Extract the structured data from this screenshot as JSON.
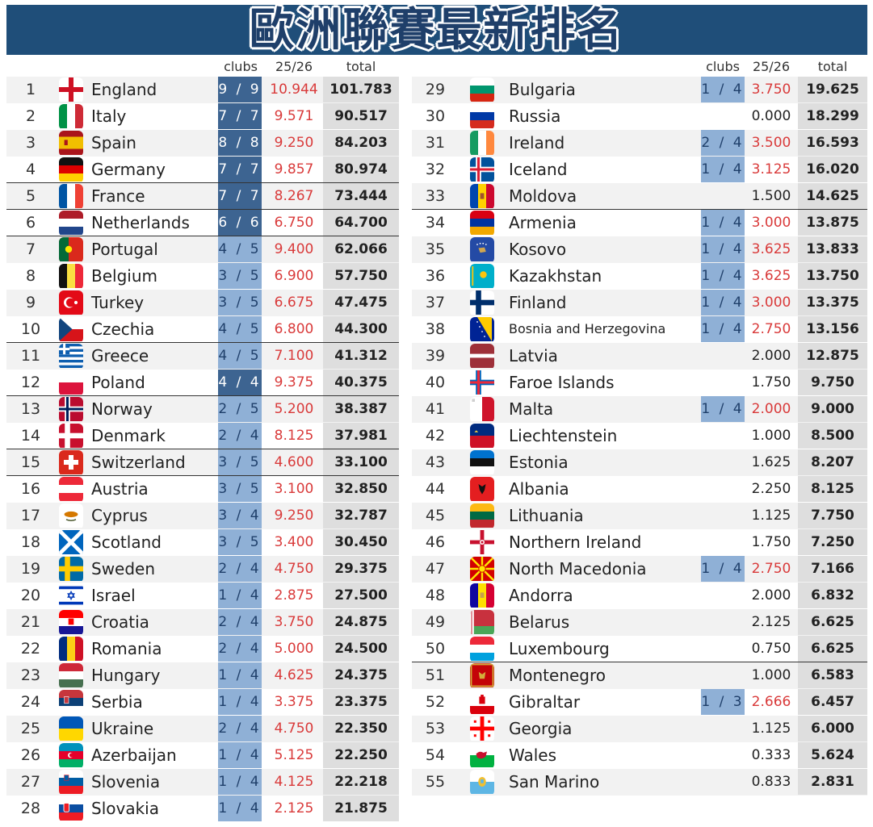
{
  "title": "歐洲聯賽最新排名",
  "headers": {
    "clubs": "clubs",
    "season": "25/26",
    "total": "total"
  },
  "colors": {
    "banner": "#1f4e79",
    "clubs_full": "#3d6491",
    "clubs_partial": "#8fb0d6",
    "season_red": "#d93a3a",
    "row_bg": "#f2f2f2",
    "total_bg": "#dedede"
  },
  "chart_data": {
    "type": "table",
    "columns": [
      "rank",
      "country",
      "clubs",
      "25/26",
      "total"
    ],
    "rows": [
      {
        "rank": "1",
        "country": "England",
        "flag": "england-flag",
        "clubs": "9 / 9",
        "season": "10.944",
        "total": "101.783"
      },
      {
        "rank": "2",
        "country": "Italy",
        "flag": "italy-flag",
        "clubs": "7 / 7",
        "season": "9.571",
        "total": "90.517"
      },
      {
        "rank": "3",
        "country": "Spain",
        "flag": "spain-flag",
        "clubs": "8 / 8",
        "season": "9.250",
        "total": "84.203"
      },
      {
        "rank": "4",
        "country": "Germany",
        "flag": "germany-flag",
        "clubs": "7 / 7",
        "season": "9.857",
        "total": "80.974"
      },
      {
        "rank": "5",
        "country": "France",
        "flag": "france-flag",
        "clubs": "7 / 7",
        "season": "8.267",
        "total": "73.444"
      },
      {
        "rank": "6",
        "country": "Netherlands",
        "flag": "netherlands-flag",
        "clubs": "6 / 6",
        "season": "6.750",
        "total": "64.700"
      },
      {
        "rank": "7",
        "country": "Portugal",
        "flag": "portugal-flag",
        "clubs": "4 / 5",
        "season": "9.400",
        "total": "62.066"
      },
      {
        "rank": "8",
        "country": "Belgium",
        "flag": "belgium-flag",
        "clubs": "3 / 5",
        "season": "6.900",
        "total": "57.750"
      },
      {
        "rank": "9",
        "country": "Turkey",
        "flag": "turkey-flag",
        "clubs": "3 / 5",
        "season": "6.675",
        "total": "47.475"
      },
      {
        "rank": "10",
        "country": "Czechia",
        "flag": "czechia-flag",
        "clubs": "4 / 5",
        "season": "6.800",
        "total": "44.300"
      },
      {
        "rank": "11",
        "country": "Greece",
        "flag": "greece-flag",
        "clubs": "4 / 5",
        "season": "7.100",
        "total": "41.312"
      },
      {
        "rank": "12",
        "country": "Poland",
        "flag": "poland-flag",
        "clubs": "4 / 4",
        "season": "9.375",
        "total": "40.375"
      },
      {
        "rank": "13",
        "country": "Norway",
        "flag": "norway-flag",
        "clubs": "2 / 5",
        "season": "5.200",
        "total": "38.387"
      },
      {
        "rank": "14",
        "country": "Denmark",
        "flag": "denmark-flag",
        "clubs": "2 / 4",
        "season": "8.125",
        "total": "37.981"
      },
      {
        "rank": "15",
        "country": "Switzerland",
        "flag": "switzerland-flag",
        "clubs": "3 / 5",
        "season": "4.600",
        "total": "33.100"
      },
      {
        "rank": "16",
        "country": "Austria",
        "flag": "austria-flag",
        "clubs": "3 / 5",
        "season": "3.100",
        "total": "32.850"
      },
      {
        "rank": "17",
        "country": "Cyprus",
        "flag": "cyprus-flag",
        "clubs": "3 / 4",
        "season": "9.250",
        "total": "32.787"
      },
      {
        "rank": "18",
        "country": "Scotland",
        "flag": "scotland-flag",
        "clubs": "3 / 5",
        "season": "3.400",
        "total": "30.450"
      },
      {
        "rank": "19",
        "country": "Sweden",
        "flag": "sweden-flag",
        "clubs": "2 / 4",
        "season": "4.750",
        "total": "29.375"
      },
      {
        "rank": "20",
        "country": "Israel",
        "flag": "israel-flag",
        "clubs": "1 / 4",
        "season": "2.875",
        "total": "27.500"
      },
      {
        "rank": "21",
        "country": "Croatia",
        "flag": "croatia-flag",
        "clubs": "2 / 4",
        "season": "3.750",
        "total": "24.875"
      },
      {
        "rank": "22",
        "country": "Romania",
        "flag": "romania-flag",
        "clubs": "2 / 4",
        "season": "5.000",
        "total": "24.500"
      },
      {
        "rank": "23",
        "country": "Hungary",
        "flag": "hungary-flag",
        "clubs": "1 / 4",
        "season": "4.625",
        "total": "24.375"
      },
      {
        "rank": "24",
        "country": "Serbia",
        "flag": "serbia-flag",
        "clubs": "1 / 4",
        "season": "3.375",
        "total": "23.375"
      },
      {
        "rank": "25",
        "country": "Ukraine",
        "flag": "ukraine-flag",
        "clubs": "2 / 4",
        "season": "4.750",
        "total": "22.350"
      },
      {
        "rank": "26",
        "country": "Azerbaijan",
        "flag": "azerbaijan-flag",
        "clubs": "1 / 4",
        "season": "5.125",
        "total": "22.250"
      },
      {
        "rank": "27",
        "country": "Slovenia",
        "flag": "slovenia-flag",
        "clubs": "1 / 4",
        "season": "4.125",
        "total": "22.218"
      },
      {
        "rank": "28",
        "country": "Slovakia",
        "flag": "slovakia-flag",
        "clubs": "1 / 4",
        "season": "2.125",
        "total": "21.875"
      },
      {
        "rank": "29",
        "country": "Bulgaria",
        "flag": "bulgaria-flag",
        "clubs": "1 / 4",
        "season": "3.750",
        "total": "19.625"
      },
      {
        "rank": "30",
        "country": "Russia",
        "flag": "russia-flag",
        "clubs": "",
        "season": "0.000",
        "total": "18.299"
      },
      {
        "rank": "31",
        "country": "Ireland",
        "flag": "ireland-flag",
        "clubs": "2 / 4",
        "season": "3.500",
        "total": "16.593"
      },
      {
        "rank": "32",
        "country": "Iceland",
        "flag": "iceland-flag",
        "clubs": "1 / 4",
        "season": "3.125",
        "total": "16.020"
      },
      {
        "rank": "33",
        "country": "Moldova",
        "flag": "moldova-flag",
        "clubs": "",
        "season": "1.500",
        "total": "14.625"
      },
      {
        "rank": "34",
        "country": "Armenia",
        "flag": "armenia-flag",
        "clubs": "1 / 4",
        "season": "3.000",
        "total": "13.875"
      },
      {
        "rank": "35",
        "country": "Kosovo",
        "flag": "kosovo-flag",
        "clubs": "1 / 4",
        "season": "3.625",
        "total": "13.833"
      },
      {
        "rank": "36",
        "country": "Kazakhstan",
        "flag": "kazakhstan-flag",
        "clubs": "1 / 4",
        "season": "3.625",
        "total": "13.750"
      },
      {
        "rank": "37",
        "country": "Finland",
        "flag": "finland-flag",
        "clubs": "1 / 4",
        "season": "3.000",
        "total": "13.375"
      },
      {
        "rank": "38",
        "country": "Bosnia and Herzegovina",
        "flag": "bosnia-flag",
        "clubs": "1 / 4",
        "season": "2.750",
        "total": "13.156"
      },
      {
        "rank": "39",
        "country": "Latvia",
        "flag": "latvia-flag",
        "clubs": "",
        "season": "2.000",
        "total": "12.875"
      },
      {
        "rank": "40",
        "country": "Faroe Islands",
        "flag": "faroe-flag",
        "clubs": "",
        "season": "1.750",
        "total": "9.750"
      },
      {
        "rank": "41",
        "country": "Malta",
        "flag": "malta-flag",
        "clubs": "1 / 4",
        "season": "2.000",
        "total": "9.000"
      },
      {
        "rank": "42",
        "country": "Liechtenstein",
        "flag": "liechtenstein-flag",
        "clubs": "",
        "season": "1.000",
        "total": "8.500"
      },
      {
        "rank": "43",
        "country": "Estonia",
        "flag": "estonia-flag",
        "clubs": "",
        "season": "1.625",
        "total": "8.207"
      },
      {
        "rank": "44",
        "country": "Albania",
        "flag": "albania-flag",
        "clubs": "",
        "season": "2.250",
        "total": "8.125"
      },
      {
        "rank": "45",
        "country": "Lithuania",
        "flag": "lithuania-flag",
        "clubs": "",
        "season": "1.125",
        "total": "7.750"
      },
      {
        "rank": "46",
        "country": "Northern Ireland",
        "flag": "northern-ireland-flag",
        "clubs": "",
        "season": "1.750",
        "total": "7.250"
      },
      {
        "rank": "47",
        "country": "North Macedonia",
        "flag": "north-macedonia-flag",
        "clubs": "1 / 4",
        "season": "2.750",
        "total": "7.166"
      },
      {
        "rank": "48",
        "country": "Andorra",
        "flag": "andorra-flag",
        "clubs": "",
        "season": "2.000",
        "total": "6.832"
      },
      {
        "rank": "49",
        "country": "Belarus",
        "flag": "belarus-flag",
        "clubs": "",
        "season": "2.125",
        "total": "6.625"
      },
      {
        "rank": "50",
        "country": "Luxembourg",
        "flag": "luxembourg-flag",
        "clubs": "",
        "season": "0.750",
        "total": "6.625"
      },
      {
        "rank": "51",
        "country": "Montenegro",
        "flag": "montenegro-flag",
        "clubs": "",
        "season": "1.000",
        "total": "6.583"
      },
      {
        "rank": "52",
        "country": "Gibraltar",
        "flag": "gibraltar-flag",
        "clubs": "1 / 3",
        "season": "2.666",
        "total": "6.457"
      },
      {
        "rank": "53",
        "country": "Georgia",
        "flag": "georgia-flag",
        "clubs": "",
        "season": "1.125",
        "total": "6.000"
      },
      {
        "rank": "54",
        "country": "Wales",
        "flag": "wales-flag",
        "clubs": "",
        "season": "0.333",
        "total": "5.624"
      },
      {
        "rank": "55",
        "country": "San Marino",
        "flag": "san-marino-flag",
        "clubs": "",
        "season": "0.833",
        "total": "2.831"
      }
    ]
  }
}
